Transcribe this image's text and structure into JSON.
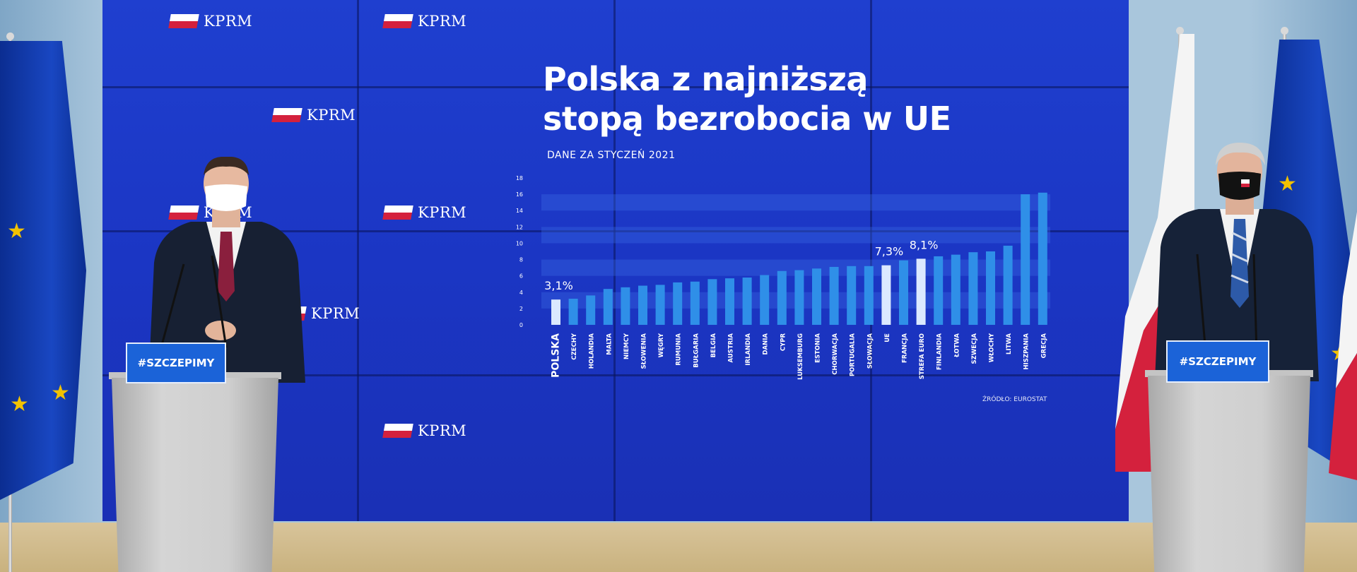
{
  "screen": {
    "logo_text": "KPRM",
    "title_line1": "Polska z najniższą",
    "title_line2": "stopą bezrobocia w UE",
    "subtitle": "DANE ZA STYCZEŃ 2021",
    "source": "ŹRÓDŁO: EUROSTAT"
  },
  "podiums": {
    "left_sign": "#SZCZEPIMY",
    "right_sign": "#SZCZEPIMY"
  },
  "colors": {
    "screen_blue": "#1f3fcf",
    "bar_blue": "#2f8fe8",
    "bar_highlight": "#dbe9ff",
    "eu_blue": "#0b2d91",
    "eu_star": "#f2c200",
    "pl_red": "#d4213d"
  },
  "chart_data": {
    "type": "bar",
    "ylim": [
      0,
      18
    ],
    "yticks": [
      "0",
      "2",
      "4",
      "6",
      "8",
      "10",
      "12",
      "14",
      "16",
      "18"
    ],
    "categories": [
      "POLSKA",
      "CZECHY",
      "HOLANDIA",
      "MALTA",
      "NIEMCY",
      "SŁOWENIA",
      "WĘGRY",
      "RUMUNIA",
      "BUŁGARIA",
      "BELGIA",
      "AUSTRIA",
      "IRLANDIA",
      "DANIA",
      "CYPR",
      "LUKSEMBURG",
      "ESTONIA",
      "CHORWACJA",
      "PORTUGALIA",
      "SŁOWACJA",
      "UE",
      "FRANCJA",
      "STREFA EURO",
      "FINLANDIA",
      "ŁOTWA",
      "SZWECJA",
      "WŁOCHY",
      "LITWA",
      "HISZPANIA",
      "GRECJA"
    ],
    "values": [
      3.1,
      3.2,
      3.6,
      4.4,
      4.6,
      4.8,
      4.9,
      5.2,
      5.3,
      5.6,
      5.7,
      5.8,
      6.1,
      6.6,
      6.7,
      6.9,
      7.1,
      7.2,
      7.2,
      7.3,
      7.9,
      8.1,
      8.4,
      8.6,
      8.9,
      9.0,
      9.7,
      16.0,
      16.2
    ],
    "highlighted": [
      "POLSKA",
      "UE",
      "STREFA EURO"
    ],
    "data_labels": [
      {
        "category": "POLSKA",
        "text": "3,1%"
      },
      {
        "category": "UE",
        "text": "7,3%"
      },
      {
        "category": "STREFA EURO",
        "text": "8,1%"
      }
    ]
  }
}
